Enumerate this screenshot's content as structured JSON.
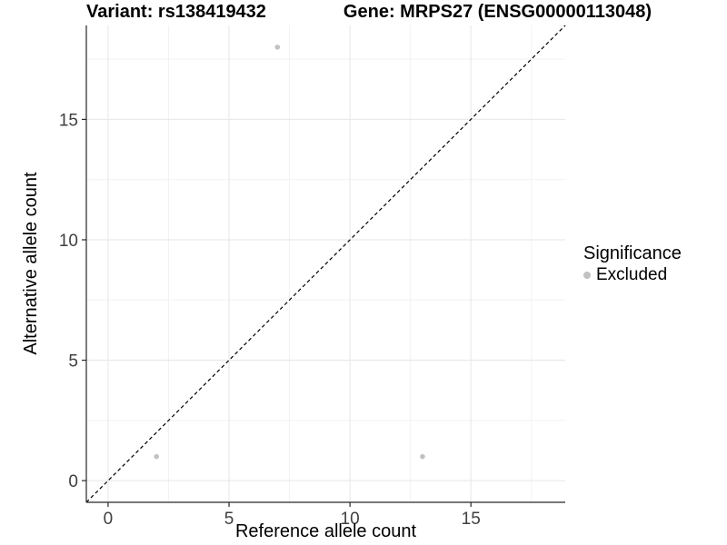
{
  "figure": {
    "background": "#ffffff"
  },
  "chart_data": {
    "type": "scatter",
    "title_left": "Variant: rs138419432",
    "title_right": "Gene: MRPS27 (ENSG00000113048)",
    "xlabel": "Reference allele count",
    "ylabel": "Alternative allele count",
    "xlim": [
      -0.9,
      18.9
    ],
    "ylim": [
      -0.9,
      18.9
    ],
    "xticks": [
      0,
      5,
      10,
      15
    ],
    "yticks": [
      0,
      5,
      10,
      15
    ],
    "x_minor_ticks": [
      2.5,
      7.5,
      12.5,
      17.5
    ],
    "y_minor_ticks": [
      2.5,
      7.5,
      12.5,
      17.5
    ],
    "grid": "major+minor",
    "legend_position": "right",
    "series": [
      {
        "name": "Excluded",
        "color": "#c2c2c2",
        "points": [
          [
            2,
            1
          ],
          [
            7,
            18
          ],
          [
            13,
            1
          ]
        ]
      }
    ],
    "reference_line": {
      "slope": 1,
      "intercept": 0,
      "style": "dashed",
      "color": "#000000"
    },
    "legend": {
      "title": "Significance",
      "entries": [
        {
          "label": "Excluded",
          "color": "#c2c2c2"
        }
      ]
    },
    "colors": {
      "point": "#c2c2c2",
      "grid_major": "#e6e6e6",
      "grid_minor": "#f2f2f2",
      "axis_line": "#262626",
      "tick_label": "#404040"
    }
  }
}
